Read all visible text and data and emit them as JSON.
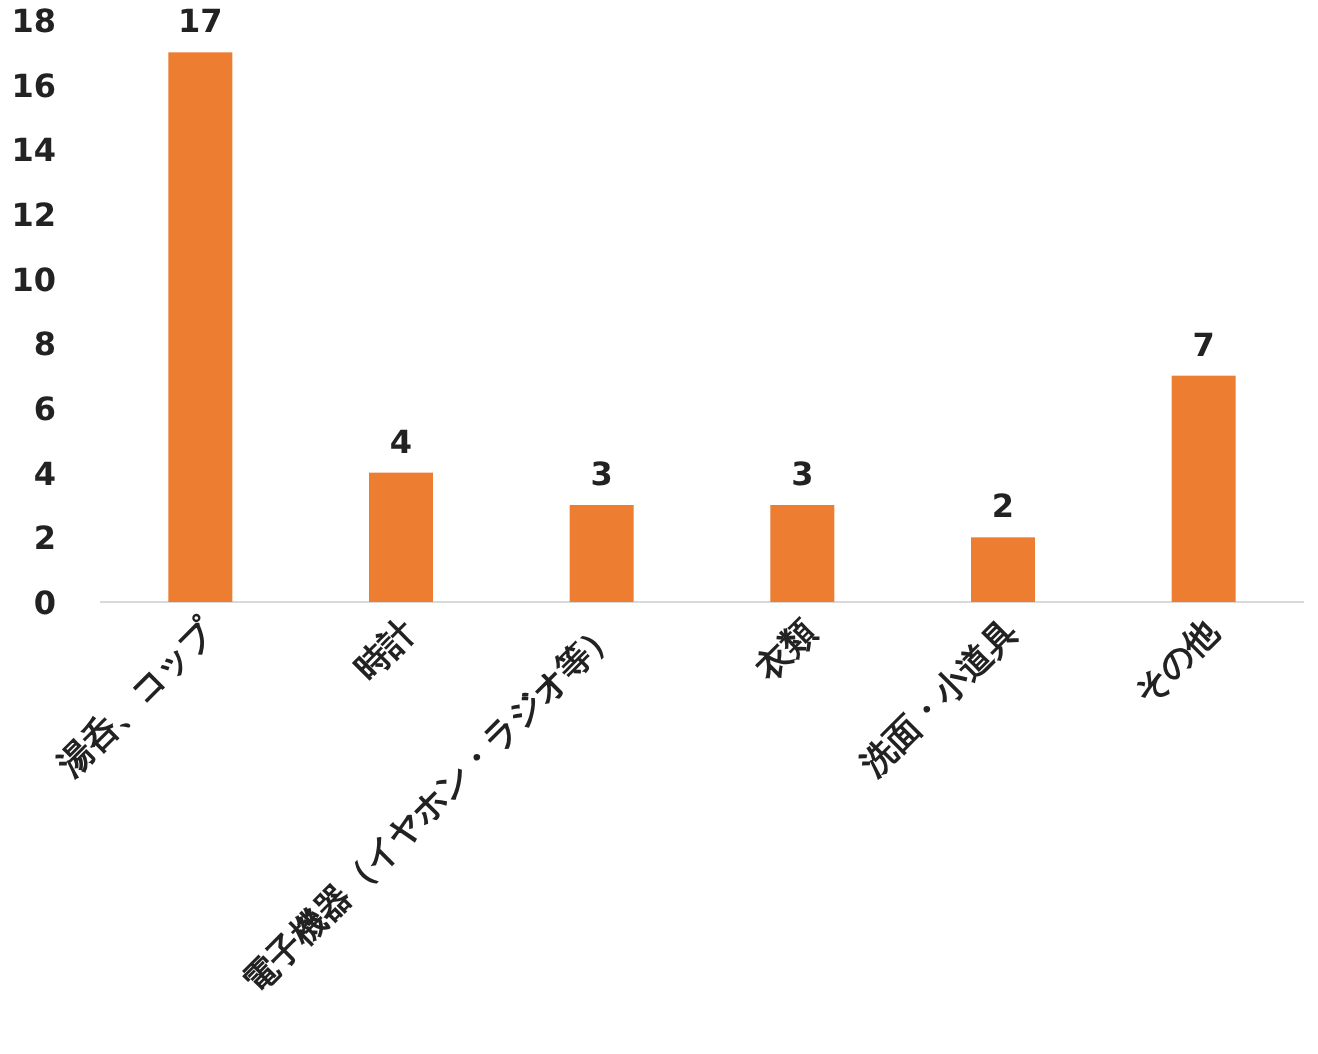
{
  "chart_data": {
    "type": "bar",
    "categories": [
      "湯呑、コップ",
      "時計",
      "電子機器（イヤホン・ラジオ等）",
      "衣類",
      "洗面・小道具",
      "その他"
    ],
    "values": [
      17,
      4,
      3,
      3,
      2,
      7
    ],
    "color": "#ed7d31",
    "ylim": [
      0,
      18
    ],
    "yticks": [
      0,
      2,
      4,
      6,
      8,
      10,
      12,
      14,
      16,
      18
    ],
    "data_labels": true,
    "grid": false
  }
}
